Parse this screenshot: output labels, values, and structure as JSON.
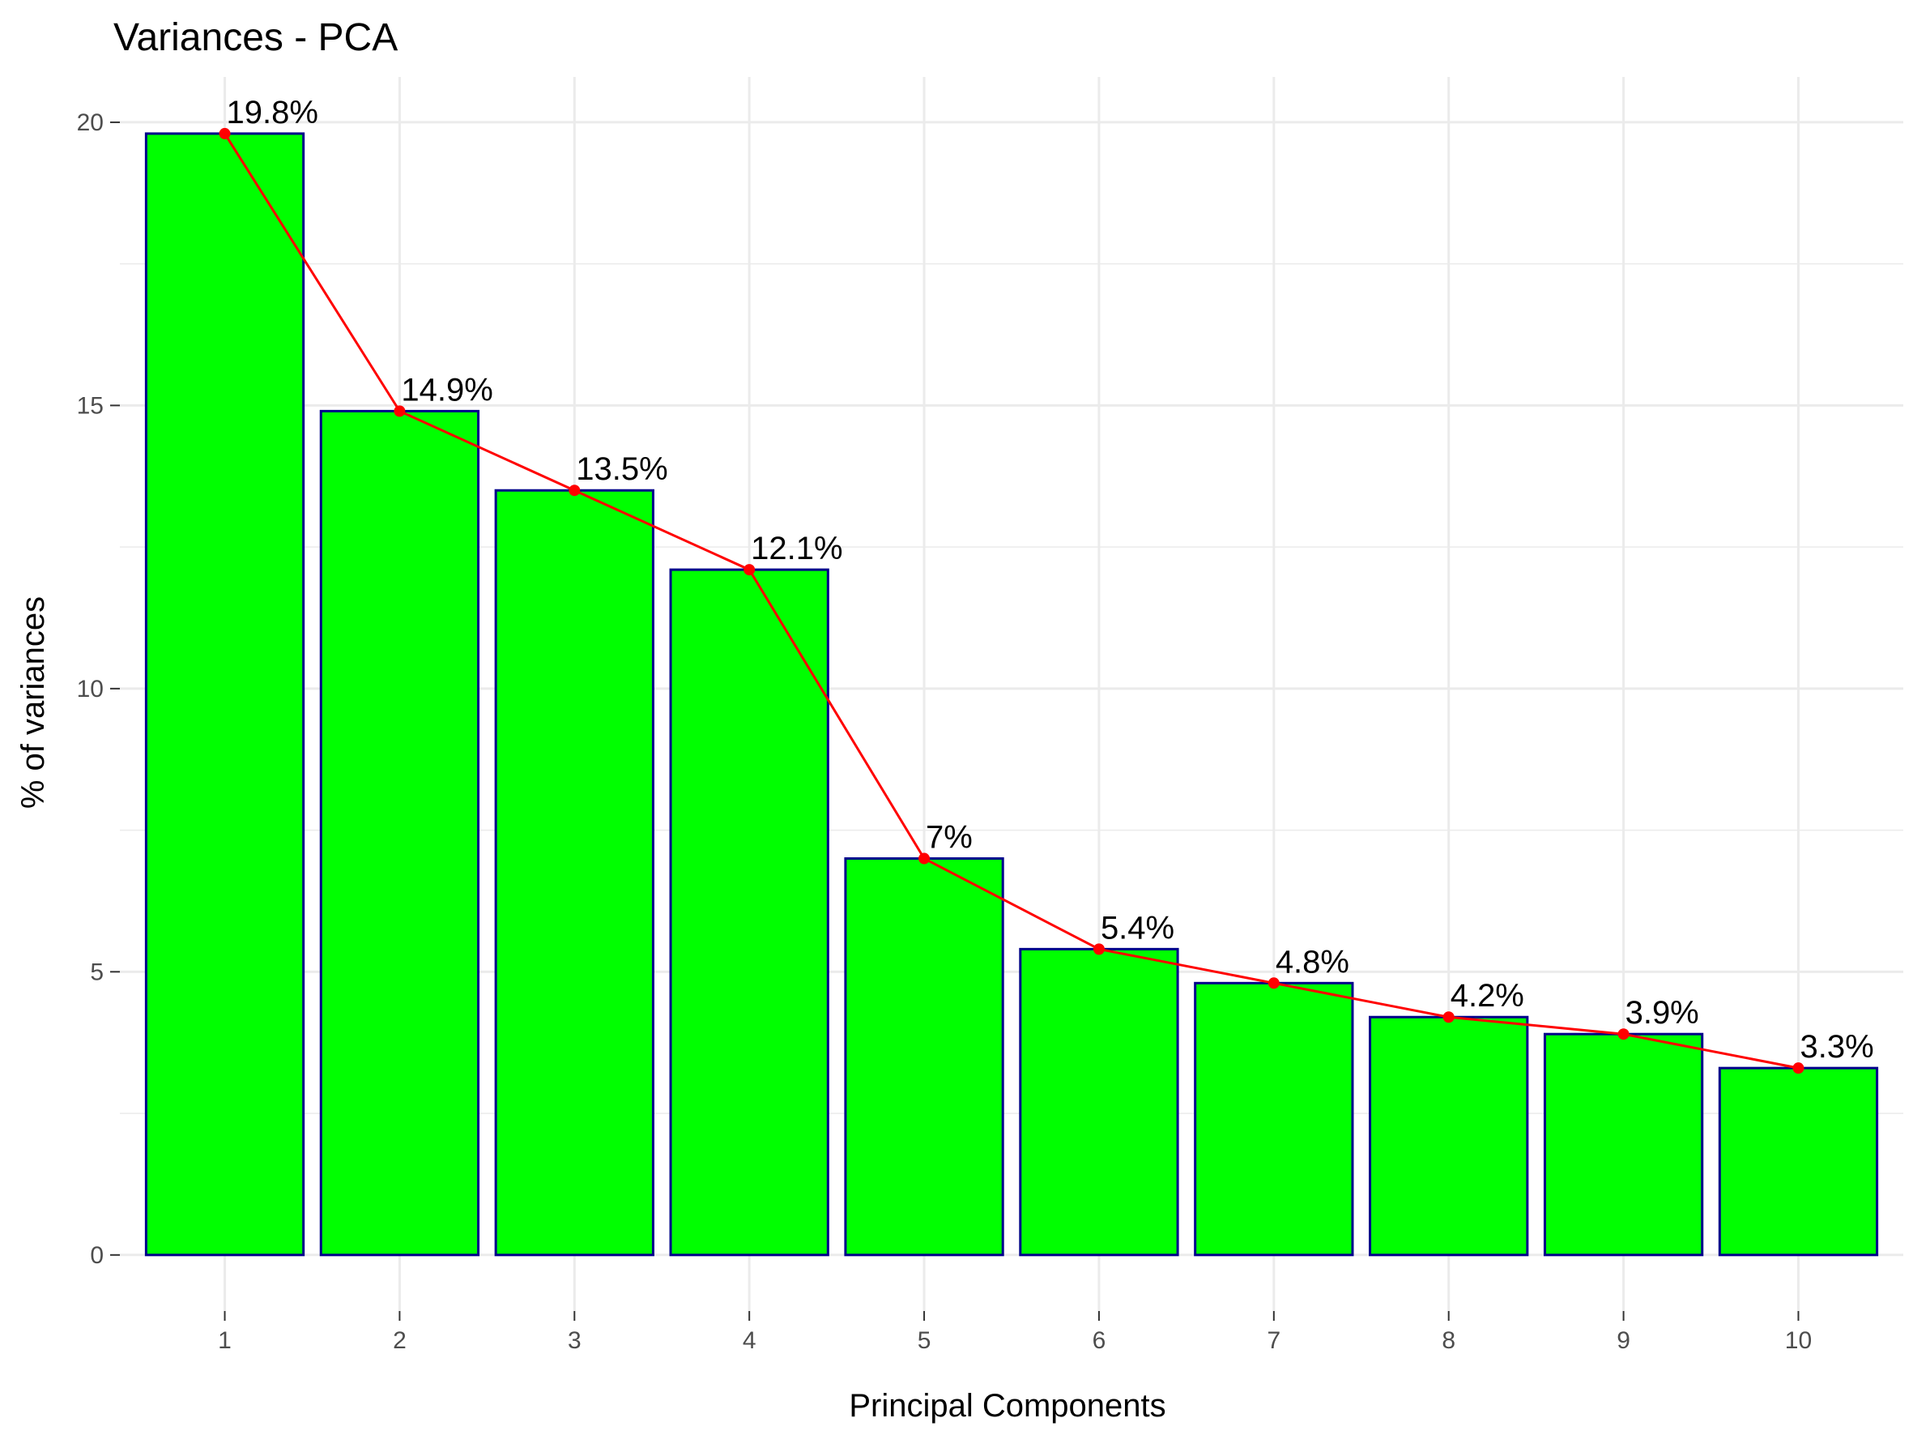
{
  "chart_data": {
    "type": "bar",
    "title": "Variances - PCA",
    "xlabel": "Principal Components",
    "ylabel": "% of variances",
    "categories": [
      "1",
      "2",
      "3",
      "4",
      "5",
      "6",
      "7",
      "8",
      "9",
      "10"
    ],
    "values": [
      19.8,
      14.9,
      13.5,
      12.1,
      7.0,
      5.4,
      4.8,
      4.2,
      3.9,
      3.3
    ],
    "data_labels": [
      "19.8%",
      "14.9%",
      "13.5%",
      "12.1%",
      "7%",
      "5.4%",
      "4.8%",
      "4.2%",
      "3.9%",
      "3.3%"
    ],
    "yticks": [
      "0",
      "5",
      "10",
      "15",
      "20"
    ],
    "ylim": [
      -0.99,
      20.8
    ],
    "overlay": "line-with-points",
    "grid": true,
    "legend": "none",
    "colors": {
      "bar_fill": "#00ff00",
      "bar_stroke": "#00008b",
      "line": "#ff0000",
      "point": "#ff0000",
      "grid": "#ebebeb"
    }
  }
}
